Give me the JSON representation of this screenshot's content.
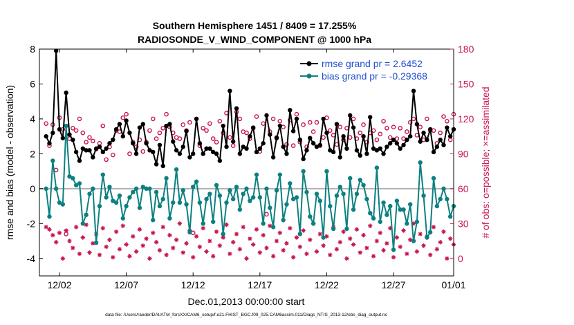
{
  "chart_data": {
    "type": "line",
    "title": "Southern Hemisphere 1451 / 8409 = 17.255%",
    "subtitle": "RADIOSONDE_V_WIND_COMPONENT @ 1000 hPa",
    "xlabel": "Dec.01,2013 00:00:00 start",
    "ylabel_left": "rmse and bias (model - observation)",
    "ylabel_right": "# of obs: o=possible; ×=assimilated",
    "footer": "data file: /Users/raeder/DAI/ATM_forcXX/CAM6_setup/f.e21.FHIST_BGC.f09_025.CAM6assim.011/Diags_NTrS_2013-12/obs_diag_output.nc",
    "x_range": [
      0.5,
      31.5
    ],
    "xticks": [
      {
        "value": 2,
        "label": "12/02"
      },
      {
        "value": 7,
        "label": "12/07"
      },
      {
        "value": 12,
        "label": "12/12"
      },
      {
        "value": 17,
        "label": "12/17"
      },
      {
        "value": 22,
        "label": "12/22"
      },
      {
        "value": 27,
        "label": "12/27"
      },
      {
        "value": 32,
        "label": "01/01"
      }
    ],
    "ylim_left": [
      -5,
      8
    ],
    "yticks_left": [
      -4,
      -2,
      0,
      2,
      4,
      6,
      8
    ],
    "ylim_right": [
      -15,
      180
    ],
    "yticks_right": [
      0,
      30,
      60,
      90,
      120,
      150,
      180
    ],
    "zero_line": 0,
    "legend_position": "top-right",
    "colors": {
      "rmse": "#000000",
      "bias": "#0c8080",
      "obs": "#c8144f",
      "zero": "#b0b0b0",
      "legend_text": "#1f4fd0"
    },
    "series": [
      {
        "name": "rmse grand pr = 2.6452",
        "color": "#000000",
        "values": [
          3.0,
          2.6,
          3.2,
          7.9,
          3.4,
          2.9,
          5.5,
          3.1,
          2.8,
          2.1,
          1.6,
          2.3,
          2.2,
          2.2,
          1.8,
          2.3,
          2.4,
          2.1,
          2.3,
          2.6,
          2.8,
          3.4,
          3.7,
          3.0,
          3.9,
          3.2,
          2.6,
          2.0,
          3.5,
          3.7,
          2.6,
          2.2,
          2.1,
          1.4,
          2.5,
          1.3,
          3.6,
          3.7,
          2.7,
          2.2,
          2.0,
          2.4,
          3.3,
          1.8,
          2.0,
          4.0,
          2.6,
          2.0,
          2.3,
          2.3,
          2.1,
          2.0,
          1.6,
          3.6,
          2.4,
          5.6,
          2.7,
          4.6,
          2.0,
          2.4,
          2.3,
          3.0,
          3.5,
          2.1,
          2.3,
          2.6,
          4.2,
          3.1,
          1.8,
          2.9,
          3.6,
          2.4,
          2.0,
          4.5,
          3.3,
          4.0,
          2.8,
          1.7,
          2.2,
          2.9,
          2.6,
          2.4,
          2.5,
          4.0,
          3.2,
          2.2,
          2.1,
          3.7,
          1.8,
          3.0,
          2.3,
          4.2,
          3.5,
          2.2,
          1.9,
          3.0,
          2.0,
          4.1,
          2.3,
          2.2,
          2.3,
          2.0,
          2.4,
          2.6,
          2.8,
          2.6,
          2.3,
          2.5,
          2.8,
          3.0,
          5.6,
          3.7,
          2.7,
          3.2,
          2.8,
          3.4,
          2.1,
          2.4,
          2.8,
          2.5,
          3.5,
          3.0,
          3.4,
          2.5,
          2.6,
          4.9,
          2.6,
          2.8,
          2.9,
          3.4,
          3.4,
          5.7,
          3.3,
          4.0,
          3.3,
          2.4,
          2.9,
          2.6,
          3.6,
          2.4,
          3.8,
          2.9,
          2.9,
          2.9
        ]
      },
      {
        "name": "bias grand pr = -0.29368",
        "color": "#0c8080",
        "values": [
          0.0,
          -1.6,
          1.6,
          0.0,
          -0.8,
          -0.9,
          3.6,
          0.7,
          0.6,
          0.2,
          0.3,
          -2.0,
          -1.5,
          -0.3,
          0.0,
          -3.1,
          -1.0,
          0.8,
          -0.5,
          0.1,
          -0.7,
          -0.8,
          -0.4,
          -1.7,
          -1.0,
          -0.5,
          -0.2,
          0.0,
          -1.1,
          0.1,
          0.0,
          0.0,
          -1.8,
          -0.2,
          -1.0,
          -0.6,
          0.6,
          -1.7,
          -0.8,
          1.1,
          -0.8,
          -0.1,
          -0.9,
          -2.5,
          0.1,
          0.4,
          -0.8,
          -2.0,
          -0.6,
          -0.3,
          -1.9,
          0.2,
          -0.4,
          -2.6,
          -0.8,
          -0.1,
          -0.6,
          0.1,
          -1.2,
          -0.3,
          0.0,
          -0.7,
          -0.5,
          0.8,
          -0.5,
          -2.0,
          0.0,
          -1.1,
          -2.2,
          -0.1,
          0.8,
          -1.8,
          -0.9,
          0.3,
          -0.6,
          -0.5,
          -2.6,
          1.0,
          -0.2,
          -1.6,
          -2.0,
          -0.3,
          -0.7,
          -2.8,
          1.0,
          -1.0,
          -2.3,
          -0.4,
          0.1,
          -0.3,
          -2.3,
          0.6,
          -1.2,
          -0.3,
          0.5,
          0.2,
          -0.6,
          -1.4,
          -1.7,
          1.2,
          -1.9,
          -0.8,
          -1.5,
          -1.0,
          -3.5,
          -0.7,
          -1.2,
          -1.2,
          -2.0,
          -0.9,
          -3.0,
          -1.9,
          1.5,
          -0.4,
          -2.8,
          -2.5,
          0.6,
          -1.0,
          -0.6,
          0.0,
          -0.6,
          -1.6,
          -1.0,
          -2.1,
          -1.5,
          -0.7,
          -0.6,
          -0.6,
          -0.7,
          -2.0,
          -1.0,
          1.8,
          0.0,
          -0.8,
          1.8,
          -1.0,
          1.4,
          -0.6,
          1.5,
          -0.6,
          -0.6,
          -3.0,
          0.0,
          0.6
        ]
      }
    ],
    "obs_possible": [
      116,
      97,
      115,
      76,
      121,
      111,
      21,
      103,
      112,
      110,
      120,
      108,
      100,
      104,
      101,
      94,
      99,
      114,
      85,
      96,
      89,
      110,
      109,
      121,
      124,
      90,
      100,
      96,
      102,
      92,
      100,
      110,
      120,
      103,
      108,
      112,
      124,
      113,
      108,
      104,
      103,
      115,
      110,
      117,
      22,
      120,
      97,
      112,
      110,
      116,
      103,
      100,
      118,
      108,
      125,
      104,
      97,
      126,
      120,
      109,
      108,
      103,
      112,
      122,
      92,
      116,
      38,
      109,
      120,
      104,
      118,
      113,
      98,
      119,
      97,
      124,
      100,
      115,
      96,
      117,
      109,
      117,
      97,
      104,
      121,
      110,
      106,
      98,
      113,
      102,
      112,
      104,
      120,
      103,
      108,
      115,
      100,
      108,
      110,
      102,
      107,
      118,
      112,
      104,
      113,
      103,
      112,
      103,
      109,
      117,
      120,
      106,
      113,
      102,
      120,
      110,
      110,
      99,
      108,
      122,
      118,
      102,
      124,
      110,
      102,
      119,
      114,
      110,
      107,
      114,
      102,
      124,
      104,
      110,
      115,
      103,
      107,
      118,
      98,
      119,
      110,
      100,
      100
    ],
    "obs_assimilated": [
      27,
      25,
      20,
      14,
      22,
      0,
      24,
      15,
      9,
      27,
      4,
      18,
      29,
      5,
      13,
      21,
      3,
      26,
      10,
      16,
      1,
      23,
      8,
      28,
      12,
      2,
      19,
      6,
      25,
      11,
      17,
      0,
      22,
      14,
      7,
      27,
      3,
      20,
      9,
      16,
      30,
      5,
      13,
      24,
      1,
      19,
      10,
      26,
      6,
      15,
      2,
      23,
      11,
      18,
      29,
      4,
      14,
      21,
      8,
      27,
      0,
      17,
      12,
      25,
      5,
      20,
      9,
      28,
      2,
      15,
      22,
      7,
      13,
      26,
      1,
      18,
      10,
      24,
      4,
      16,
      30,
      6,
      21,
      11,
      19,
      3,
      27,
      8,
      14,
      23,
      0,
      17,
      12,
      25,
      5,
      20,
      9,
      28,
      2,
      15,
      22,
      7,
      13,
      26,
      1,
      18,
      10,
      24,
      4,
      16,
      30,
      6,
      21,
      11,
      19,
      3,
      27,
      8,
      14,
      23,
      0,
      17,
      12,
      25,
      5,
      20,
      9,
      28,
      2,
      15,
      22,
      7,
      13,
      26,
      1,
      18,
      10,
      24,
      4,
      16,
      30,
      6,
      0
    ]
  }
}
